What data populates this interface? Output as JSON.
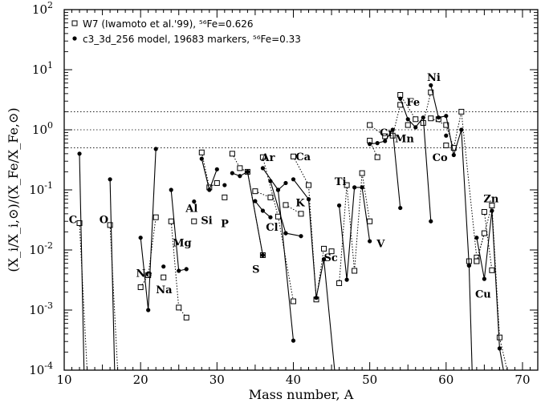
{
  "chart_data": {
    "type": "line",
    "xlabel": "Mass number, A",
    "ylabel": "(X_i/X_i,⊙)/(X_Fe/X_Fe,⊙)",
    "xlim": [
      10,
      72
    ],
    "ylim_log10": [
      -4,
      2
    ],
    "yscale": "log",
    "x_ticks": [
      "10",
      "20",
      "30",
      "40",
      "50",
      "60",
      "70"
    ],
    "y_ticks": [
      {
        "base": "10",
        "exp": "-4"
      },
      {
        "base": "10",
        "exp": "-3"
      },
      {
        "base": "10",
        "exp": "-2"
      },
      {
        "base": "10",
        "exp": "-1"
      },
      {
        "base": "10",
        "exp": "0"
      },
      {
        "base": "10",
        "exp": "1"
      },
      {
        "base": "10",
        "exp": "2"
      }
    ],
    "reference_lines": [
      0.5,
      1.0,
      2.0
    ],
    "legend": {
      "placement": "top-left",
      "entries": [
        {
          "symbol": "□",
          "text": "W7 (Iwamoto et al.'99), ⁵⁶Fe=0.626"
        },
        {
          "symbol": "•",
          "text": "c3_3d_256 model, 19683 markers, ⁵⁶Fe=0.33"
        }
      ]
    },
    "element_labels": [
      {
        "text": "C",
        "x": 10.6,
        "y": 0.028
      },
      {
        "text": "O",
        "x": 14.6,
        "y": 0.028
      },
      {
        "text": "Ne",
        "x": 19.4,
        "y": 0.0036
      },
      {
        "text": "Na",
        "x": 22.0,
        "y": 0.0019
      },
      {
        "text": "Mg",
        "x": 24.2,
        "y": 0.0115
      },
      {
        "text": "Al",
        "x": 25.9,
        "y": 0.043
      },
      {
        "text": "Si",
        "x": 27.9,
        "y": 0.027
      },
      {
        "text": "P",
        "x": 30.5,
        "y": 0.024
      },
      {
        "text": "S",
        "x": 34.6,
        "y": 0.0042
      },
      {
        "text": "Cl",
        "x": 36.4,
        "y": 0.021
      },
      {
        "text": "Ar",
        "x": 35.8,
        "y": 0.3
      },
      {
        "text": "K",
        "x": 40.3,
        "y": 0.053
      },
      {
        "text": "Ca",
        "x": 40.3,
        "y": 0.31
      },
      {
        "text": "Sc",
        "x": 44.0,
        "y": 0.0065
      },
      {
        "text": "Ti",
        "x": 45.4,
        "y": 0.12
      },
      {
        "text": "V",
        "x": 50.9,
        "y": 0.0112
      },
      {
        "text": "Cr",
        "x": 51.3,
        "y": 0.78
      },
      {
        "text": "Mn",
        "x": 53.3,
        "y": 0.62
      },
      {
        "text": "Fe",
        "x": 54.8,
        "y": 2.5
      },
      {
        "text": "Co",
        "x": 58.2,
        "y": 0.3
      },
      {
        "text": "Ni",
        "x": 57.5,
        "y": 6.5
      },
      {
        "text": "Cu",
        "x": 63.8,
        "y": 0.0016
      },
      {
        "text": "Zn",
        "x": 64.9,
        "y": 0.062
      }
    ],
    "series": [
      {
        "name": "W7 (Iwamoto et al.'99), ⁵⁶Fe=0.626",
        "marker": "open-square",
        "line": "dotted",
        "segments": [
          {
            "x": [
              12,
              13
            ],
            "y": [
              0.028,
              0.0001
            ]
          },
          {
            "x": [
              16,
              17
            ],
            "y": [
              0.026,
              0.0001
            ]
          },
          {
            "x": [
              20,
              21,
              22
            ],
            "y": [
              0.0024,
              0.0038,
              0.035
            ]
          },
          {
            "x": [
              23
            ],
            "y": [
              0.0035
            ]
          },
          {
            "x": [
              24,
              25,
              26
            ],
            "y": [
              0.03,
              0.0011,
              0.00075
            ]
          },
          {
            "x": [
              27
            ],
            "y": [
              0.03
            ]
          },
          {
            "x": [
              28,
              29,
              30
            ],
            "y": [
              0.42,
              0.11,
              0.13
            ]
          },
          {
            "x": [
              31
            ],
            "y": [
              0.075
            ]
          },
          {
            "x": [
              32,
              33,
              34,
              36
            ],
            "y": [
              0.4,
              0.23,
              0.2,
              0.0082
            ]
          },
          {
            "x": [
              35,
              37
            ],
            "y": [
              0.095,
              0.075
            ]
          },
          {
            "x": [
              36,
              38,
              40
            ],
            "y": [
              0.35,
              0.036,
              0.0014
            ]
          },
          {
            "x": [
              39,
              41
            ],
            "y": [
              0.056,
              0.04
            ]
          },
          {
            "x": [
              40,
              42,
              43,
              44
            ],
            "y": [
              0.36,
              0.12,
              0.0015,
              0.0105
            ]
          },
          {
            "x": [
              45
            ],
            "y": [
              0.0095
            ]
          },
          {
            "x": [
              46,
              47,
              48,
              49,
              50
            ],
            "y": [
              0.0028,
              0.12,
              0.0045,
              0.19,
              0.03
            ]
          },
          {
            "x": [
              50,
              51
            ],
            "y": [
              0.66,
              0.35
            ]
          },
          {
            "x": [
              50,
              52,
              53,
              54
            ],
            "y": [
              1.2,
              0.78,
              0.8,
              2.6
            ]
          },
          {
            "x": [
              54,
              56,
              57,
              58
            ],
            "y": [
              3.8,
              1.5,
              1.3,
              4.2
            ]
          },
          {
            "x": [
              55
            ],
            "y": [
              1.2
            ]
          },
          {
            "x": [
              59
            ],
            "y": [
              1.5
            ]
          },
          {
            "x": [
              58,
              60,
              61,
              62,
              64
            ],
            "y": [
              1.55,
              1.2,
              0.5,
              2.0,
              0.0075
            ]
          },
          {
            "x": [
              60
            ],
            "y": [
              0.55
            ]
          },
          {
            "x": [
              63
            ],
            "y": [
              0.0065
            ]
          },
          {
            "x": [
              64,
              66,
              67,
              68
            ],
            "y": [
              0.0065,
              0.055,
              0.00035,
              0.0001
            ]
          },
          {
            "x": [
              65,
              66
            ],
            "y": [
              0.043,
              0.0046
            ]
          },
          {
            "x": [
              64,
              65
            ],
            "y": [
              0.0065,
              0.019
            ]
          }
        ]
      },
      {
        "name": "c3_3d_256 model, 19683 markers, ⁵⁶Fe=0.33",
        "marker": "filled-circle",
        "line": "solid",
        "segments": [
          {
            "x": [
              12,
              12.6
            ],
            "y": [
              0.4,
              0.0001
            ]
          },
          {
            "x": [
              16,
              16.6
            ],
            "y": [
              0.15,
              0.0001
            ]
          },
          {
            "x": [
              20,
              21,
              22
            ],
            "y": [
              0.016,
              0.001,
              0.48
            ]
          },
          {
            "x": [
              23
            ],
            "y": [
              0.0053
            ]
          },
          {
            "x": [
              24,
              25,
              26
            ],
            "y": [
              0.1,
              0.0045,
              0.0048
            ]
          },
          {
            "x": [
              27
            ],
            "y": [
              0.064
            ]
          },
          {
            "x": [
              28,
              29,
              30
            ],
            "y": [
              0.33,
              0.1,
              0.22
            ]
          },
          {
            "x": [
              31
            ],
            "y": [
              0.12
            ]
          },
          {
            "x": [
              32,
              33,
              34
            ],
            "y": [
              0.19,
              0.17,
              0.2
            ]
          },
          {
            "x": [
              34,
              36
            ],
            "y": [
              0.2,
              0.0082
            ]
          },
          {
            "x": [
              35,
              36,
              37
            ],
            "y": [
              0.065,
              0.045,
              0.035
            ]
          },
          {
            "x": [
              36,
              38,
              39
            ],
            "y": [
              0.23,
              0.1,
              0.13
            ]
          },
          {
            "x": [
              37,
              39
            ],
            "y": [
              0.14,
              0.019
            ]
          },
          {
            "x": [
              38,
              40
            ],
            "y": [
              0.1,
              0.00031
            ]
          },
          {
            "x": [
              39,
              41
            ],
            "y": [
              0.019,
              0.017
            ]
          },
          {
            "x": [
              40,
              42,
              43,
              44
            ],
            "y": [
              0.15,
              0.07,
              0.0016,
              0.007
            ]
          },
          {
            "x": [
              44,
              45.4
            ],
            "y": [
              0.007,
              0.0001
            ]
          },
          {
            "x": [
              46,
              47,
              48,
              49,
              50
            ],
            "y": [
              0.055,
              0.0032,
              0.11,
              0.11,
              0.014
            ]
          },
          {
            "x": [
              50,
              51,
              52,
              53,
              54
            ],
            "y": [
              0.58,
              0.6,
              0.65,
              1.0,
              0.05
            ]
          },
          {
            "x": [
              54,
              55,
              56,
              57,
              58
            ],
            "y": [
              3.3,
              1.5,
              1.1,
              1.6,
              0.03
            ]
          },
          {
            "x": [
              58,
              59,
              60,
              61,
              62,
              63
            ],
            "y": [
              5.5,
              1.6,
              1.7,
              0.38,
              1.0,
              0.0055
            ]
          },
          {
            "x": [
              60
            ],
            "y": [
              0.8
            ]
          },
          {
            "x": [
              63,
              63.4
            ],
            "y": [
              0.0055,
              0.0001
            ]
          },
          {
            "x": [
              64,
              65,
              66,
              67,
              67.5
            ],
            "y": [
              0.016,
              0.0033,
              0.045,
              0.00023,
              0.0001
            ]
          }
        ]
      }
    ]
  }
}
